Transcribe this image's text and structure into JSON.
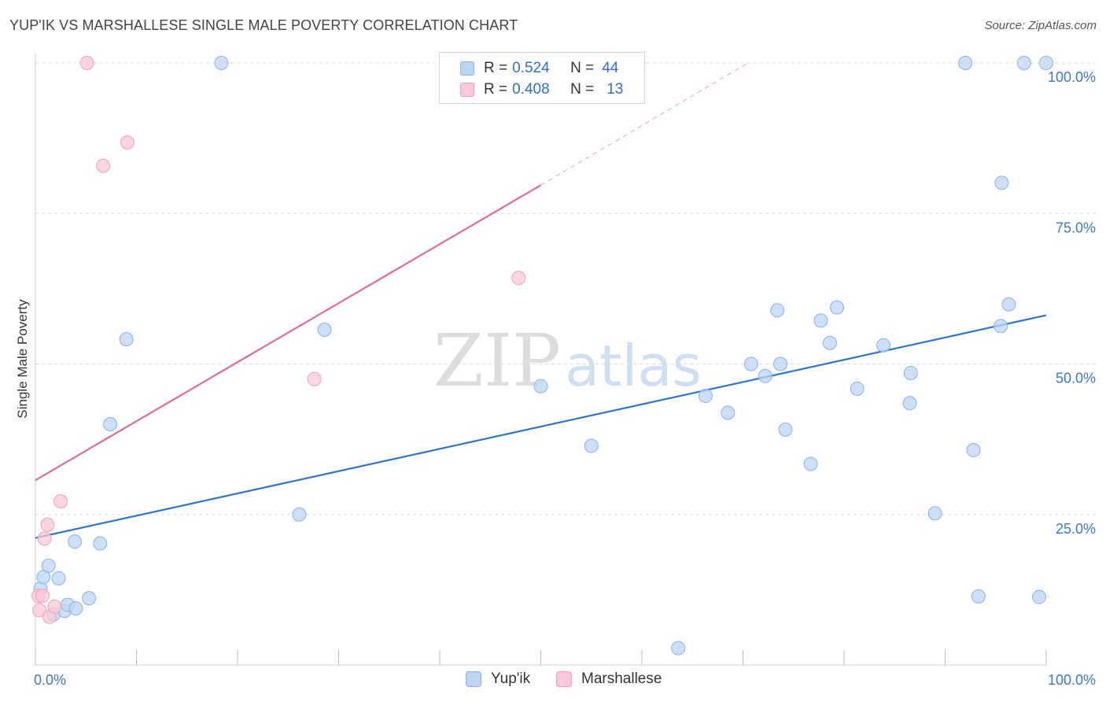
{
  "title": "YUP'IK VS MARSHALLESE SINGLE MALE POVERTY CORRELATION CHART",
  "source": "Source: ZipAtlas.com",
  "legend": {
    "r_label": "R =",
    "n_label": "N =",
    "rows": [
      {
        "name": "Yup'ik",
        "r": "0.524",
        "n": "44"
      },
      {
        "name": "Marshallese",
        "r": "0.408",
        "n": "13"
      }
    ]
  },
  "colors": {
    "yupik_fill": "#bcd4f3",
    "yupik_stroke": "#8ab2e6",
    "yupik_line": "#2e74c9",
    "marsh_fill": "#fac8d6",
    "marsh_stroke": "#f2a0b8",
    "marsh_line": "#e06b93",
    "grid": "#d9d9d9",
    "tick_text": "#3a78c9"
  },
  "watermark": {
    "zip": "ZIP",
    "atlas": "atlas"
  },
  "chart_data": {
    "type": "scatter",
    "title": "YUP'IK VS MARSHALLESE SINGLE MALE POVERTY CORRELATION CHART",
    "xlabel": "",
    "ylabel": "Single Male Poverty",
    "xlim": [
      0,
      100
    ],
    "ylim": [
      0,
      100
    ],
    "x_tick_labels": [
      "0.0%",
      "100.0%"
    ],
    "y_ticks": [
      25,
      50,
      75,
      100
    ],
    "y_tick_labels": [
      "25.0%",
      "50.0%",
      "75.0%",
      "100.0%"
    ],
    "bottom_legend": [
      "Yup'ik",
      "Marshallese"
    ],
    "series": [
      {
        "name": "Yup'ik",
        "points": [
          [
            0.5,
            12.7
          ],
          [
            0.8,
            14.6
          ],
          [
            1.3,
            16.5
          ],
          [
            2.3,
            14.4
          ],
          [
            1.8,
            8.4
          ],
          [
            2.9,
            9.0
          ],
          [
            3.2,
            10.0
          ],
          [
            4.0,
            9.4
          ],
          [
            3.9,
            20.5
          ],
          [
            5.3,
            11.1
          ],
          [
            6.4,
            20.2
          ],
          [
            7.4,
            40.0
          ],
          [
            9.0,
            54.1
          ],
          [
            18.4,
            100.0
          ],
          [
            26.1,
            25.0
          ],
          [
            28.6,
            55.7
          ],
          [
            50.0,
            46.3
          ],
          [
            55.0,
            36.4
          ],
          [
            63.6,
            2.8
          ],
          [
            66.3,
            44.7
          ],
          [
            68.5,
            41.9
          ],
          [
            70.8,
            50.0
          ],
          [
            72.2,
            48.0
          ],
          [
            73.4,
            58.9
          ],
          [
            73.7,
            50.0
          ],
          [
            74.2,
            39.1
          ],
          [
            76.7,
            33.4
          ],
          [
            77.7,
            57.2
          ],
          [
            78.6,
            53.5
          ],
          [
            79.3,
            59.4
          ],
          [
            81.3,
            45.9
          ],
          [
            83.9,
            53.1
          ],
          [
            86.5,
            43.5
          ],
          [
            86.6,
            48.5
          ],
          [
            89.0,
            25.2
          ],
          [
            92.0,
            100.0
          ],
          [
            92.8,
            35.7
          ],
          [
            93.3,
            11.4
          ],
          [
            95.5,
            56.3
          ],
          [
            95.6,
            80.1
          ],
          [
            96.3,
            59.9
          ],
          [
            97.8,
            100.0
          ],
          [
            99.3,
            11.3
          ],
          [
            100.0,
            100.0
          ]
        ],
        "trend": {
          "x0": 0,
          "y0": 21.1,
          "x1": 100,
          "y1": 58.1
        }
      },
      {
        "name": "Marshallese",
        "points": [
          [
            0.3,
            11.5
          ],
          [
            0.4,
            9.1
          ],
          [
            0.7,
            11.5
          ],
          [
            0.9,
            21.0
          ],
          [
            1.2,
            23.3
          ],
          [
            1.4,
            8.0
          ],
          [
            1.9,
            9.7
          ],
          [
            2.5,
            27.2
          ],
          [
            5.1,
            100.0
          ],
          [
            6.7,
            82.9
          ],
          [
            9.1,
            86.8
          ],
          [
            27.6,
            47.5
          ],
          [
            47.8,
            64.3
          ]
        ],
        "trend": {
          "x0": 0,
          "y0": 30.7,
          "x1": 50,
          "y1": 79.7
        },
        "trend_extension": {
          "x0": 50,
          "y0": 79.7,
          "x1": 70.5,
          "y1": 100.0
        }
      }
    ]
  }
}
